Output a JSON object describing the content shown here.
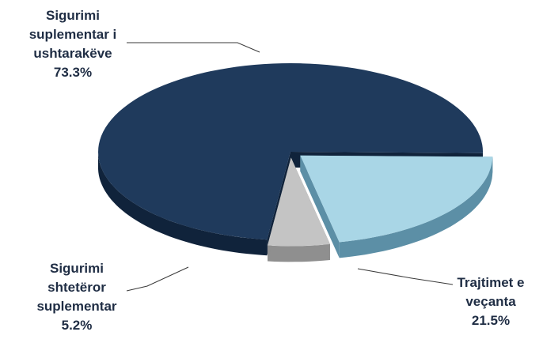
{
  "chart_data": {
    "type": "pie",
    "title": "",
    "categories": [
      "Sigurimi suplementar i ushtarakëve",
      "Trajtimet e veçanta",
      "Sigurimi shtetëror suplementar"
    ],
    "values": [
      73.3,
      21.5,
      5.2
    ],
    "value_unit": "%",
    "style": "3d-exploded",
    "colors": [
      "#1f3a5c",
      "#a9d6e6",
      "#c4c4c4"
    ],
    "side_colors": [
      "#10233b",
      "#5c8fa6",
      "#8f8f8f"
    ],
    "slices": [
      {
        "label_lines": [
          "Sigurimi",
          "suplementar i",
          "ushtarakëve"
        ],
        "pct_text": "73.3%"
      },
      {
        "label_lines": [
          "Trajtimet e",
          "veçanta"
        ],
        "pct_text": "21.5%"
      },
      {
        "label_lines": [
          "Sigurimi",
          "shtetëror",
          "suplementar"
        ],
        "pct_text": "5.2%"
      }
    ]
  }
}
